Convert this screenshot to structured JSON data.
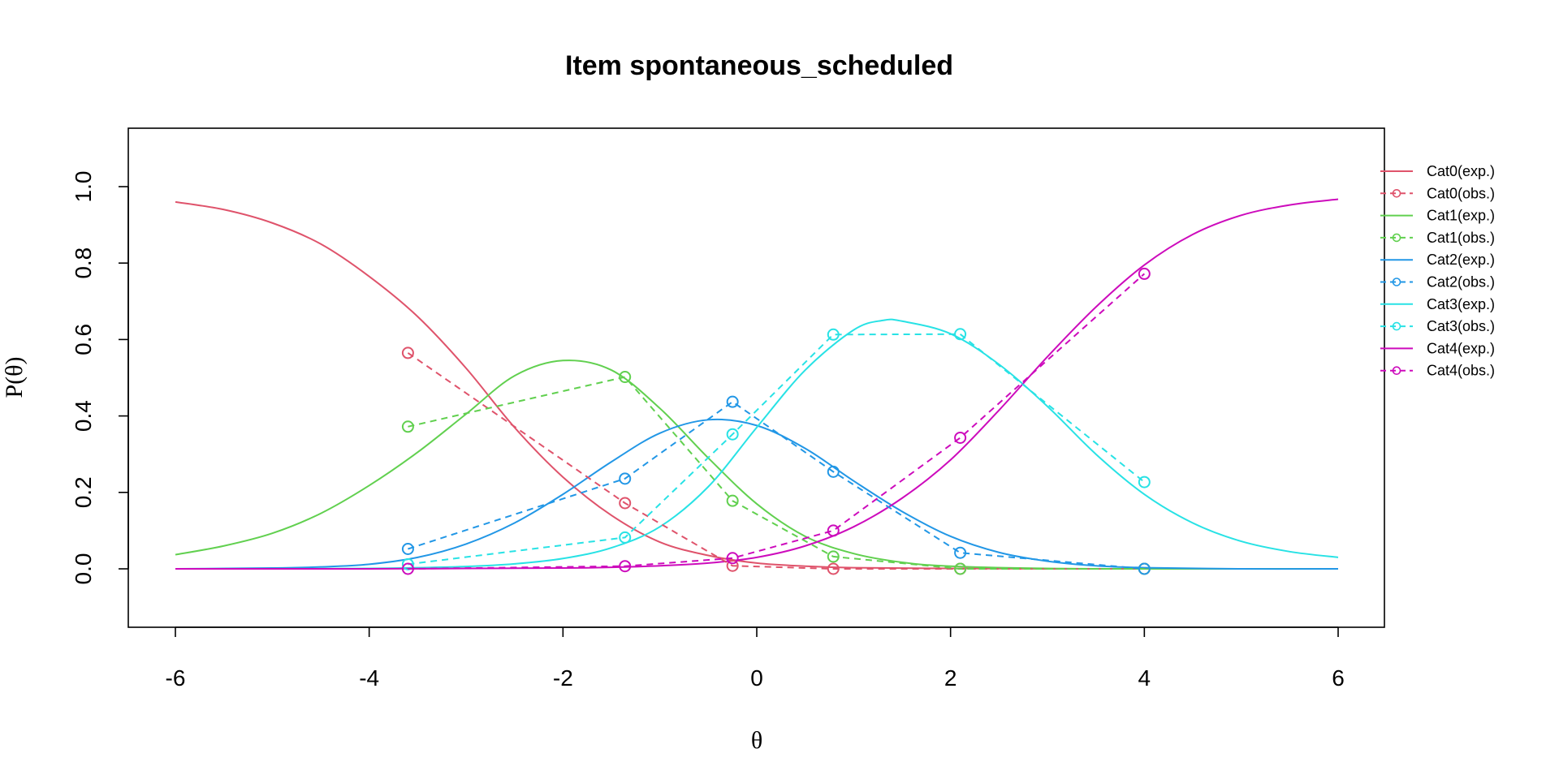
{
  "chart_data": {
    "type": "line",
    "title": "Item spontaneous_scheduled",
    "xlabel": "θ",
    "ylabel": "P(θ)",
    "xlim": [
      -6,
      6
    ],
    "ylim": [
      -0.15,
      1.15
    ],
    "xticks": [
      -6,
      -4,
      -2,
      0,
      2,
      4,
      6
    ],
    "xtick_labels": [
      "-6",
      "-4",
      "-2",
      "0",
      "2",
      "4",
      "6"
    ],
    "yticks": [
      0.0,
      0.2,
      0.4,
      0.6,
      0.8,
      1.0
    ],
    "ytick_labels": [
      "0.0",
      "0.2",
      "0.4",
      "0.6",
      "0.8",
      "1.0"
    ],
    "grid": false,
    "legend_position": "right",
    "expected": [
      {
        "name": "Cat0(exp.)",
        "color": "#DF536B",
        "x": [
          -6,
          -5.5,
          -5,
          -4.5,
          -4,
          -3.5,
          -3,
          -2.5,
          -2,
          -1.5,
          -1,
          -0.5,
          0,
          0.5,
          1,
          2,
          3,
          4,
          5,
          6
        ],
        "y": [
          0.96,
          0.94,
          0.905,
          0.85,
          0.765,
          0.66,
          0.525,
          0.37,
          0.24,
          0.14,
          0.07,
          0.035,
          0.015,
          0.007,
          0.003,
          0.001,
          0.0,
          0.0,
          0.0,
          0.0
        ]
      },
      {
        "name": "Cat1(exp.)",
        "color": "#61D04F",
        "x": [
          -6,
          -5.5,
          -5,
          -4.5,
          -4,
          -3.5,
          -3,
          -2.5,
          -2,
          -1.5,
          -1,
          -0.5,
          0,
          0.5,
          1,
          1.5,
          2,
          3,
          4,
          5,
          6
        ],
        "y": [
          0.037,
          0.06,
          0.093,
          0.145,
          0.218,
          0.305,
          0.405,
          0.505,
          0.545,
          0.52,
          0.42,
          0.29,
          0.17,
          0.085,
          0.04,
          0.017,
          0.007,
          0.001,
          0.0,
          0.0,
          0.0
        ]
      },
      {
        "name": "Cat2(exp.)",
        "color": "#2297E6",
        "x": [
          -6,
          -5,
          -4.5,
          -4,
          -3.5,
          -3,
          -2.5,
          -2,
          -1.5,
          -1,
          -0.5,
          0,
          0.5,
          1,
          1.5,
          2,
          2.5,
          3,
          3.5,
          4,
          5,
          6
        ],
        "y": [
          0.0,
          0.002,
          0.005,
          0.012,
          0.03,
          0.065,
          0.12,
          0.195,
          0.28,
          0.355,
          0.39,
          0.375,
          0.315,
          0.23,
          0.15,
          0.085,
          0.043,
          0.02,
          0.008,
          0.003,
          0.0,
          0.0
        ]
      },
      {
        "name": "Cat3(exp.)",
        "color": "#28E2E5",
        "x": [
          -6,
          -5,
          -4,
          -3.5,
          -3,
          -2.5,
          -2,
          -1.5,
          -1,
          -0.5,
          0,
          0.5,
          1,
          1.3,
          1.5,
          2,
          2.5,
          3,
          3.5,
          4,
          4.5,
          5,
          5.5,
          6
        ],
        "y": [
          0.0,
          0.0,
          0.001,
          0.003,
          0.006,
          0.013,
          0.027,
          0.055,
          0.11,
          0.215,
          0.37,
          0.52,
          0.625,
          0.65,
          0.648,
          0.615,
          0.535,
          0.425,
          0.3,
          0.195,
          0.12,
          0.072,
          0.045,
          0.03
        ]
      },
      {
        "name": "Cat4(exp.)",
        "color": "#CD0BBC",
        "x": [
          -6,
          -4,
          -3,
          -2,
          -1.5,
          -1,
          -0.5,
          0,
          0.5,
          1,
          1.5,
          2,
          2.5,
          3,
          3.5,
          4,
          4.5,
          5,
          5.5,
          6
        ],
        "y": [
          0.0,
          0.0,
          0.001,
          0.002,
          0.004,
          0.008,
          0.015,
          0.03,
          0.06,
          0.11,
          0.185,
          0.285,
          0.415,
          0.555,
          0.685,
          0.795,
          0.875,
          0.925,
          0.952,
          0.967
        ]
      }
    ],
    "observed": [
      {
        "name": "Cat0(obs.)",
        "color": "#DF536B",
        "x": [
          -3.6,
          -1.36,
          -0.25,
          0.79,
          2.1,
          4.0
        ],
        "y": [
          0.565,
          0.172,
          0.008,
          0.0,
          0.0,
          0.0
        ]
      },
      {
        "name": "Cat1(obs.)",
        "color": "#61D04F",
        "x": [
          -3.6,
          -1.36,
          -0.25,
          0.79,
          2.1,
          4.0
        ],
        "y": [
          0.372,
          0.502,
          0.178,
          0.032,
          0.0,
          0.0
        ]
      },
      {
        "name": "Cat2(obs.)",
        "color": "#2297E6",
        "x": [
          -3.6,
          -1.36,
          -0.25,
          0.79,
          2.1,
          4.0
        ],
        "y": [
          0.052,
          0.236,
          0.437,
          0.254,
          0.042,
          0.0
        ]
      },
      {
        "name": "Cat3(obs.)",
        "color": "#28E2E5",
        "x": [
          -3.6,
          -1.36,
          -0.25,
          0.79,
          2.1,
          4.0
        ],
        "y": [
          0.012,
          0.082,
          0.352,
          0.613,
          0.614,
          0.227
        ]
      },
      {
        "name": "Cat4(obs.)",
        "color": "#CD0BBC",
        "x": [
          -3.6,
          -1.36,
          -0.25,
          0.79,
          2.1,
          4.0
        ],
        "y": [
          0.0,
          0.007,
          0.028,
          0.1,
          0.343,
          0.772
        ]
      }
    ],
    "legend": [
      {
        "label": "Cat0(exp.)",
        "color": "#DF536B",
        "style": "solid"
      },
      {
        "label": "Cat0(obs.)",
        "color": "#DF536B",
        "style": "dashed"
      },
      {
        "label": "Cat1(exp.)",
        "color": "#61D04F",
        "style": "solid"
      },
      {
        "label": "Cat1(obs.)",
        "color": "#61D04F",
        "style": "dashed"
      },
      {
        "label": "Cat2(exp.)",
        "color": "#2297E6",
        "style": "solid"
      },
      {
        "label": "Cat2(obs.)",
        "color": "#2297E6",
        "style": "dashed"
      },
      {
        "label": "Cat3(exp.)",
        "color": "#28E2E5",
        "style": "solid"
      },
      {
        "label": "Cat3(obs.)",
        "color": "#28E2E5",
        "style": "dashed"
      },
      {
        "label": "Cat4(exp.)",
        "color": "#CD0BBC",
        "style": "solid"
      },
      {
        "label": "Cat4(obs.)",
        "color": "#CD0BBC",
        "style": "dashed"
      }
    ]
  }
}
